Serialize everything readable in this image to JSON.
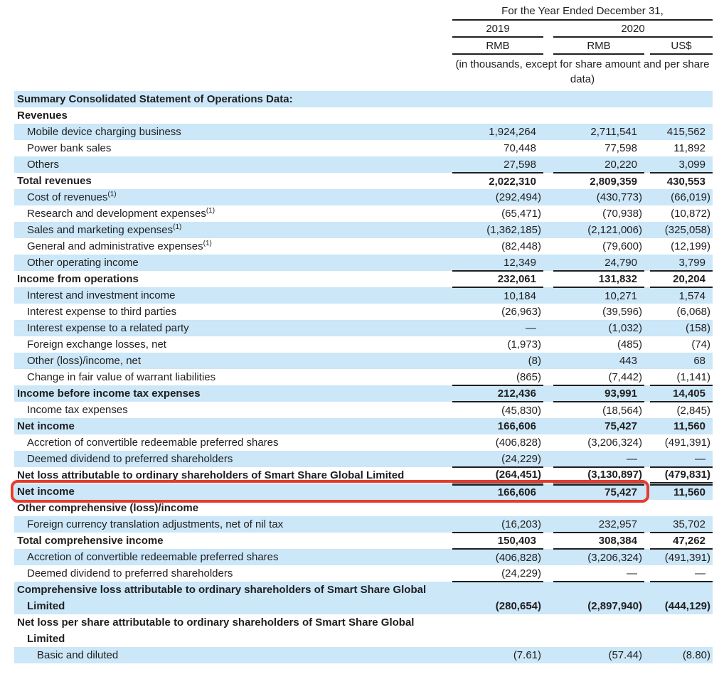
{
  "header": {
    "period_title": "For the Year Ended December 31,",
    "years": [
      "2019",
      "2020"
    ],
    "currencies": [
      "RMB",
      "RMB",
      "US$"
    ],
    "units_note": "(in thousands, except for share amount and per share data)"
  },
  "columns": [
    "2019 RMB",
    "2020 RMB",
    "2020 US$"
  ],
  "rows": [
    {
      "label": "Summary Consolidated Statement of Operations Data:",
      "bold": true,
      "indent": 0,
      "shaded": true,
      "values": [
        "",
        "",
        ""
      ]
    },
    {
      "label": "Revenues",
      "bold": true,
      "indent": 0,
      "shaded": false,
      "values": [
        "",
        "",
        ""
      ]
    },
    {
      "label": "Mobile device charging business",
      "indent": 1,
      "shaded": true,
      "values": [
        "1,924,264",
        "2,711,541",
        "415,562"
      ]
    },
    {
      "label": "Power bank sales",
      "indent": 1,
      "shaded": false,
      "values": [
        "70,448",
        "77,598",
        "11,892"
      ]
    },
    {
      "label": "Others",
      "indent": 1,
      "shaded": true,
      "values": [
        "27,598",
        "20,220",
        "3,099"
      ],
      "rule_below": "single"
    },
    {
      "label": "Total revenues",
      "bold": true,
      "bold_values": true,
      "indent": 0,
      "shaded": false,
      "values": [
        "2,022,310",
        "2,809,359",
        "430,553"
      ]
    },
    {
      "label": "Cost of revenues",
      "sup": "(1)",
      "indent": 1,
      "shaded": true,
      "values": [
        "(292,494)",
        "(430,773)",
        "(66,019)"
      ]
    },
    {
      "label": "Research and development expenses",
      "sup": "(1)",
      "indent": 1,
      "shaded": false,
      "values": [
        "(65,471)",
        "(70,938)",
        "(10,872)"
      ]
    },
    {
      "label": "Sales and marketing expenses",
      "sup": "(1)",
      "indent": 1,
      "shaded": true,
      "values": [
        "(1,362,185)",
        "(2,121,006)",
        "(325,058)"
      ]
    },
    {
      "label": "General and administrative expenses",
      "sup": "(1)",
      "indent": 1,
      "shaded": false,
      "values": [
        "(82,448)",
        "(79,600)",
        "(12,199)"
      ]
    },
    {
      "label": "Other operating income",
      "indent": 1,
      "shaded": true,
      "values": [
        "12,349",
        "24,790",
        "3,799"
      ],
      "rule_below": "single"
    },
    {
      "label": "Income from operations",
      "bold": true,
      "bold_values": true,
      "indent": 0,
      "shaded": false,
      "values": [
        "232,061",
        "131,832",
        "20,204"
      ],
      "rule_below": "single"
    },
    {
      "label": "Interest and investment income",
      "indent": 1,
      "shaded": true,
      "values": [
        "10,184",
        "10,271",
        "1,574"
      ]
    },
    {
      "label": "Interest expense to third parties",
      "indent": 1,
      "shaded": false,
      "values": [
        "(26,963)",
        "(39,596)",
        "(6,068)"
      ]
    },
    {
      "label": "Interest expense to a related party",
      "indent": 1,
      "shaded": true,
      "values": [
        "—",
        "(1,032)",
        "(158)"
      ]
    },
    {
      "label": "Foreign exchange losses, net",
      "indent": 1,
      "shaded": false,
      "values": [
        "(1,973)",
        "(485)",
        "(74)"
      ]
    },
    {
      "label": "Other (loss)/income, net",
      "indent": 1,
      "shaded": true,
      "values": [
        "(8)",
        "443",
        "68"
      ]
    },
    {
      "label": "Change in fair value of warrant liabilities",
      "indent": 1,
      "shaded": false,
      "values": [
        "(865)",
        "(7,442)",
        "(1,141)"
      ],
      "rule_below": "single"
    },
    {
      "label": "Income before income tax expenses",
      "bold": true,
      "bold_values": true,
      "indent": 0,
      "shaded": true,
      "values": [
        "212,436",
        "93,991",
        "14,405"
      ],
      "rule_below": "single"
    },
    {
      "label": "Income tax expenses",
      "indent": 1,
      "shaded": false,
      "values": [
        "(45,830)",
        "(18,564)",
        "(2,845)"
      ]
    },
    {
      "label": "Net income",
      "bold": true,
      "bold_values": true,
      "indent": 0,
      "shaded": true,
      "values": [
        "166,606",
        "75,427",
        "11,560"
      ]
    },
    {
      "label": "Accretion of convertible redeemable preferred shares",
      "indent": 1,
      "shaded": false,
      "values": [
        "(406,828)",
        "(3,206,324)",
        "(491,391)"
      ]
    },
    {
      "label": "Deemed dividend to preferred shareholders",
      "indent": 1,
      "shaded": true,
      "values": [
        "(24,229)",
        "—",
        "—"
      ],
      "rule_below": "single"
    },
    {
      "label": "Net loss attributable to ordinary shareholders of Smart Share Global Limited",
      "bold": true,
      "bold_values": true,
      "indent": 0,
      "shaded": false,
      "values": [
        "(264,451)",
        "(3,130,897)",
        "(479,831)"
      ],
      "rule_below": "double"
    },
    {
      "label": "Net income",
      "bold": true,
      "bold_values": true,
      "indent": 0,
      "shaded": true,
      "values": [
        "166,606",
        "75,427",
        "11,560"
      ],
      "red_box": true
    },
    {
      "label": "Other comprehensive (loss)/income",
      "bold": true,
      "indent": 0,
      "shaded": false,
      "values": [
        "",
        "",
        ""
      ]
    },
    {
      "label": "Foreign currency translation adjustments, net of nil tax",
      "indent": 1,
      "shaded": true,
      "values": [
        "(16,203)",
        "232,957",
        "35,702"
      ],
      "rule_below": "single"
    },
    {
      "label": "Total comprehensive income",
      "bold": true,
      "bold_values": true,
      "indent": 0,
      "shaded": false,
      "values": [
        "150,403",
        "308,384",
        "47,262"
      ],
      "rule_below": "single"
    },
    {
      "label": "Accretion of convertible redeemable preferred shares",
      "indent": 1,
      "shaded": true,
      "values": [
        "(406,828)",
        "(3,206,324)",
        "(491,391)"
      ]
    },
    {
      "label": "Deemed dividend to preferred shareholders",
      "indent": 1,
      "shaded": false,
      "values": [
        "(24,229)",
        "—",
        "—"
      ],
      "rule_below": "single"
    },
    {
      "label": "Comprehensive loss attributable to ordinary shareholders of Smart Share Global",
      "label2": "Limited",
      "bold": true,
      "bold_values": true,
      "indent": 0,
      "shaded": true,
      "values": [
        "(280,654)",
        "(2,897,940)",
        "(444,129)"
      ]
    },
    {
      "label": "Net loss per share attributable to ordinary shareholders of Smart Share Global",
      "label2": "Limited",
      "bold": true,
      "indent": 0,
      "shaded": false,
      "values": [
        "",
        "",
        ""
      ]
    },
    {
      "label": "Basic and diluted",
      "indent": 2,
      "shaded": true,
      "values": [
        "(7.61)",
        "(57.44)",
        "(8.80)"
      ]
    }
  ],
  "highlight": {
    "type": "red-rounded-box",
    "row_label": "Net income",
    "row_values_boxed": [
      "166,606",
      "75,427"
    ],
    "spans_columns": [
      "label",
      "2019 RMB",
      "2020 RMB"
    ]
  },
  "colors": {
    "row_stripe": "#cbe7f8",
    "text": "#211e1f",
    "rule": "#211e1f",
    "highlight_box": "#e73b2d"
  }
}
